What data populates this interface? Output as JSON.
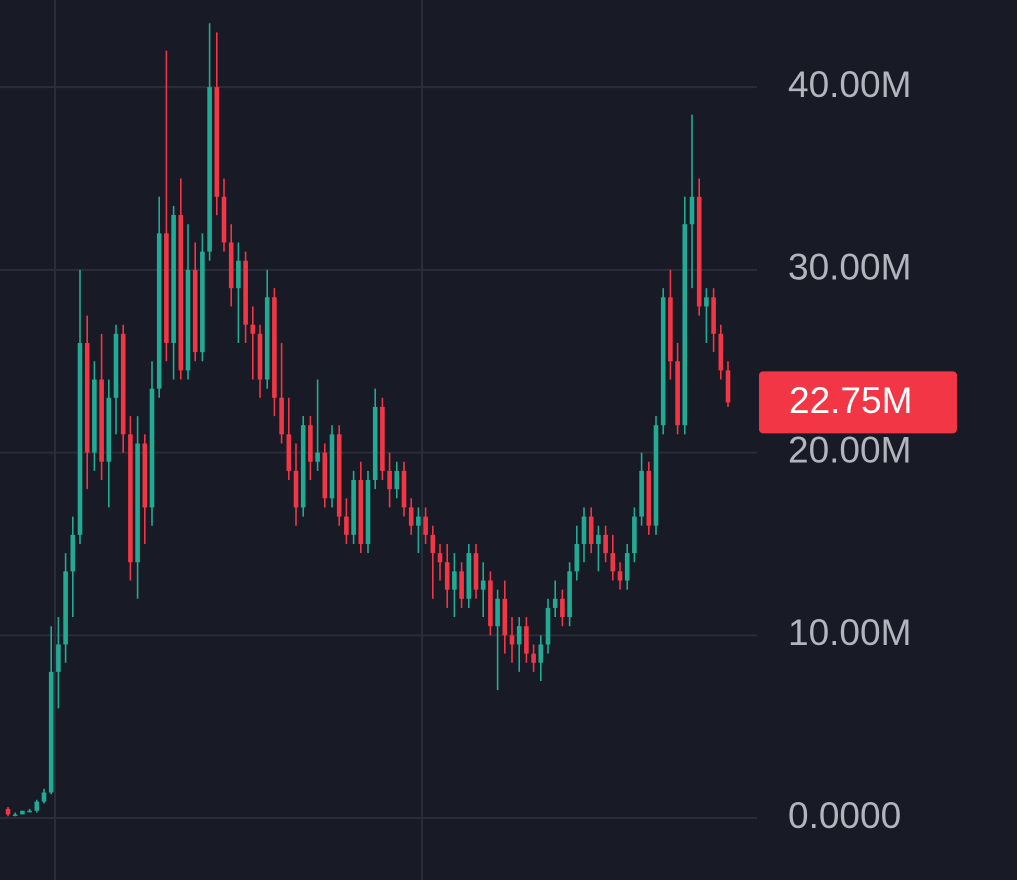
{
  "chart_data": {
    "type": "candlestick",
    "ylim": [
      -3.39,
      44.77
    ],
    "yticks": [
      {
        "value": 0,
        "label": "0.0000"
      },
      {
        "value": 10,
        "label": "10.00M"
      },
      {
        "value": 20,
        "label": "20.00M"
      },
      {
        "value": 30,
        "label": "30.00M"
      },
      {
        "value": 40,
        "label": "40.00M"
      }
    ],
    "grid": true,
    "up_color": "#22ab94",
    "down_color": "#f23645",
    "last_price": {
      "value": 22.75,
      "label": "22.75M"
    },
    "ohlc": [
      [
        0.5,
        0.6,
        0.1,
        0.2
      ],
      [
        0.2,
        0.3,
        0.1,
        0.2
      ],
      [
        0.2,
        0.4,
        0.2,
        0.4
      ],
      [
        0.4,
        0.5,
        0.3,
        0.4
      ],
      [
        0.4,
        1.0,
        0.3,
        0.9
      ],
      [
        0.9,
        1.6,
        0.8,
        1.4
      ],
      [
        1.4,
        10.5,
        1.3,
        8.0
      ],
      [
        8.0,
        11.0,
        6.0,
        9.5
      ],
      [
        9.5,
        14.5,
        8.5,
        13.5
      ],
      [
        13.5,
        16.5,
        11.0,
        15.5
      ],
      [
        15.5,
        30.0,
        15.0,
        26.0
      ],
      [
        26.0,
        27.5,
        18.0,
        20.0
      ],
      [
        20.0,
        25.0,
        19.0,
        24.0
      ],
      [
        24.0,
        26.5,
        18.5,
        19.5
      ],
      [
        19.5,
        24.0,
        17.0,
        23.0
      ],
      [
        23.0,
        27.0,
        21.0,
        26.5
      ],
      [
        26.5,
        27.0,
        20.0,
        21.0
      ],
      [
        21.0,
        22.0,
        13.0,
        14.0
      ],
      [
        14.0,
        22.0,
        12.0,
        20.5
      ],
      [
        20.5,
        21.0,
        15.0,
        17.0
      ],
      [
        17.0,
        25.0,
        16.0,
        23.5
      ],
      [
        23.5,
        34.0,
        23.0,
        32.0
      ],
      [
        32.0,
        42.0,
        25.0,
        26.0
      ],
      [
        26.0,
        33.5,
        24.0,
        33.0
      ],
      [
        33.0,
        35.0,
        24.0,
        24.5
      ],
      [
        24.5,
        32.5,
        24.0,
        30.0
      ],
      [
        30.0,
        31.5,
        25.0,
        25.5
      ],
      [
        25.5,
        32.0,
        25.0,
        31.0
      ],
      [
        31.0,
        43.5,
        30.5,
        40.0
      ],
      [
        40.0,
        43.0,
        33.0,
        34.0
      ],
      [
        34.0,
        35.0,
        31.0,
        31.5
      ],
      [
        31.5,
        32.5,
        28.0,
        29.0
      ],
      [
        29.0,
        31.5,
        26.0,
        30.5
      ],
      [
        30.5,
        31.0,
        26.0,
        27.0
      ],
      [
        27.0,
        28.0,
        24.0,
        26.5
      ],
      [
        26.5,
        27.0,
        23.0,
        24.0
      ],
      [
        24.0,
        30.0,
        23.5,
        28.5
      ],
      [
        28.5,
        29.0,
        22.0,
        23.0
      ],
      [
        23.0,
        26.0,
        20.5,
        21.0
      ],
      [
        21.0,
        23.0,
        18.5,
        19.0
      ],
      [
        19.0,
        20.5,
        16.0,
        17.0
      ],
      [
        17.0,
        22.0,
        16.5,
        21.5
      ],
      [
        21.5,
        22.0,
        18.5,
        19.5
      ],
      [
        19.5,
        24.0,
        19.0,
        20.0
      ],
      [
        20.0,
        20.5,
        17.0,
        17.5
      ],
      [
        17.5,
        21.5,
        17.0,
        21.0
      ],
      [
        21.0,
        21.5,
        16.0,
        16.5
      ],
      [
        16.5,
        17.5,
        15.0,
        15.5
      ],
      [
        15.5,
        19.0,
        15.0,
        18.5
      ],
      [
        18.5,
        19.5,
        14.5,
        15.0
      ],
      [
        15.0,
        19.0,
        14.5,
        18.5
      ],
      [
        18.5,
        23.5,
        18.0,
        22.5
      ],
      [
        22.5,
        23.0,
        18.5,
        19.0
      ],
      [
        19.0,
        20.0,
        17.0,
        18.0
      ],
      [
        18.0,
        19.5,
        17.5,
        19.0
      ],
      [
        19.0,
        19.5,
        16.5,
        17.0
      ],
      [
        17.0,
        17.5,
        15.5,
        16.0
      ],
      [
        16.0,
        17.0,
        14.5,
        16.5
      ],
      [
        16.5,
        17.0,
        15.0,
        15.5
      ],
      [
        15.5,
        16.0,
        12.0,
        14.5
      ],
      [
        14.5,
        15.0,
        13.0,
        14.0
      ],
      [
        14.0,
        15.0,
        11.5,
        12.5
      ],
      [
        12.5,
        14.5,
        11.0,
        13.5
      ],
      [
        13.5,
        14.0,
        11.5,
        12.0
      ],
      [
        12.0,
        15.0,
        11.5,
        14.5
      ],
      [
        14.5,
        15.0,
        12.0,
        12.5
      ],
      [
        12.5,
        14.0,
        11.0,
        13.0
      ],
      [
        13.0,
        13.5,
        10.0,
        10.5
      ],
      [
        10.5,
        12.5,
        7.0,
        12.0
      ],
      [
        12.0,
        13.0,
        9.0,
        10.0
      ],
      [
        10.0,
        11.0,
        8.5,
        9.5
      ],
      [
        9.5,
        11.0,
        8.0,
        10.5
      ],
      [
        10.5,
        11.0,
        8.5,
        9.0
      ],
      [
        9.0,
        9.5,
        8.0,
        8.5
      ],
      [
        8.5,
        10.0,
        7.5,
        9.5
      ],
      [
        9.5,
        12.0,
        9.0,
        11.5
      ],
      [
        11.5,
        13.0,
        11.0,
        12.0
      ],
      [
        12.0,
        12.5,
        10.5,
        11.0
      ],
      [
        11.0,
        14.0,
        10.5,
        13.5
      ],
      [
        13.5,
        16.0,
        13.0,
        15.0
      ],
      [
        15.0,
        17.0,
        14.0,
        16.5
      ],
      [
        16.5,
        17.0,
        14.5,
        15.0
      ],
      [
        15.0,
        16.0,
        13.5,
        15.5
      ],
      [
        15.5,
        16.0,
        14.0,
        14.5
      ],
      [
        14.5,
        15.5,
        13.0,
        13.5
      ],
      [
        13.5,
        14.0,
        12.5,
        13.0
      ],
      [
        13.0,
        15.0,
        12.5,
        14.5
      ],
      [
        14.5,
        17.0,
        14.0,
        16.5
      ],
      [
        16.5,
        20.0,
        16.0,
        19.0
      ],
      [
        19.0,
        19.5,
        15.5,
        16.0
      ],
      [
        16.0,
        22.0,
        15.5,
        21.5
      ],
      [
        21.5,
        29.0,
        21.0,
        28.5
      ],
      [
        28.5,
        30.0,
        24.0,
        25.0
      ],
      [
        25.0,
        26.0,
        21.0,
        21.5
      ],
      [
        21.5,
        34.0,
        21.0,
        32.5
      ],
      [
        32.5,
        38.5,
        29.0,
        34.0
      ],
      [
        34.0,
        35.0,
        27.5,
        28.0
      ],
      [
        28.0,
        29.0,
        26.0,
        28.5
      ],
      [
        28.5,
        29.0,
        25.5,
        26.5
      ],
      [
        26.5,
        27.0,
        24.0,
        24.5
      ],
      [
        24.5,
        25.0,
        22.5,
        22.75
      ]
    ]
  }
}
